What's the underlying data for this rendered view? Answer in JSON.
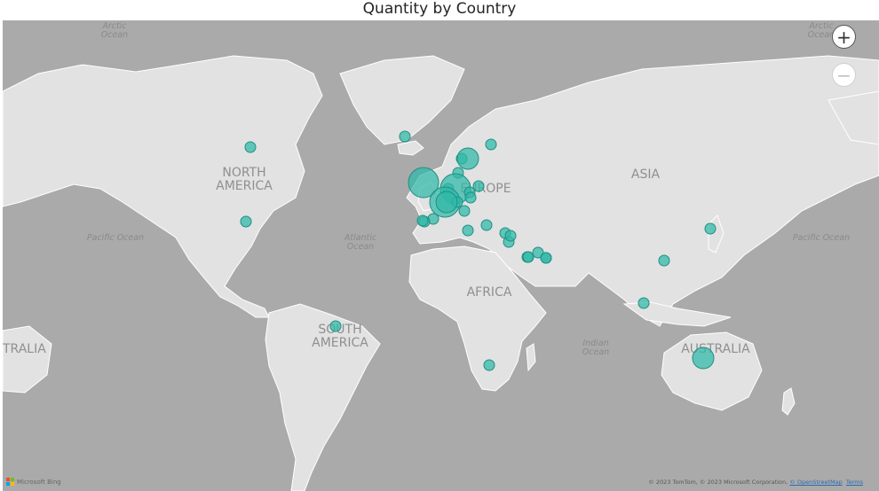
{
  "title": "Quantity by Country",
  "labels": {
    "arctic_left": [
      "Arctic",
      "Ocean"
    ],
    "arctic_right": [
      "Arctic",
      "Ocean"
    ],
    "pacific_left": "Pacific Ocean",
    "pacific_right": "Pacific Ocean",
    "atlantic": [
      "Atlantic",
      "Ocean"
    ],
    "indian": [
      "Indian",
      "Ocean"
    ],
    "north_america": [
      "NORTH",
      "AMERICA"
    ],
    "south_america": [
      "SOUTH",
      "AMERICA"
    ],
    "europe": "EUROPE",
    "africa": "AFRICA",
    "asia": "ASIA",
    "australia_left": "TRALIA",
    "australia": "AUSTRALIA"
  },
  "controls": {
    "zoom_in": "+",
    "zoom_out": "−"
  },
  "footer": {
    "bing": "Microsoft Bing",
    "attribution": "© 2023 TomTom, © 2023 Microsoft Corporation, ",
    "osm_link": "© OpenStreetMap",
    "terms_link": "Terms"
  },
  "colors": {
    "bubble": "#2fb9a8",
    "land": "#e2e2e2",
    "water": "#aaaaaa"
  },
  "bubbles": [
    {
      "place": "Canada",
      "size": "small"
    },
    {
      "place": "United States",
      "size": "small"
    },
    {
      "place": "Iceland",
      "size": "small"
    },
    {
      "place": "Brazil",
      "size": "small"
    },
    {
      "place": "South Africa",
      "size": "small"
    },
    {
      "place": "United Kingdom",
      "size": "large"
    },
    {
      "place": "Ireland",
      "size": "small"
    },
    {
      "place": "Norway",
      "size": "small"
    },
    {
      "place": "Sweden",
      "size": "medium"
    },
    {
      "place": "Finland",
      "size": "small"
    },
    {
      "place": "Denmark",
      "size": "small"
    },
    {
      "place": "Netherlands",
      "size": "small"
    },
    {
      "place": "Belgium",
      "size": "small"
    },
    {
      "place": "Germany",
      "size": "large"
    },
    {
      "place": "France",
      "size": "large"
    },
    {
      "place": "Switzerland",
      "size": "small"
    },
    {
      "place": "Austria",
      "size": "small"
    },
    {
      "place": "Poland",
      "size": "small"
    },
    {
      "place": "Czech Republic",
      "size": "small"
    },
    {
      "place": "Italy",
      "size": "small"
    },
    {
      "place": "Spain",
      "size": "medium"
    },
    {
      "place": "Portugal",
      "size": "small"
    },
    {
      "place": "Greece",
      "size": "small"
    },
    {
      "place": "Malta",
      "size": "small"
    },
    {
      "place": "Turkey",
      "size": "small"
    },
    {
      "place": "Israel",
      "size": "small"
    },
    {
      "place": "Lebanon",
      "size": "small"
    },
    {
      "place": "Jordan",
      "size": "small"
    },
    {
      "place": "Saudi Arabia",
      "size": "small"
    },
    {
      "place": "Qatar",
      "size": "small"
    },
    {
      "place": "United Arab Emirates",
      "size": "small"
    },
    {
      "place": "Oman",
      "size": "small"
    },
    {
      "place": "Japan",
      "size": "small"
    },
    {
      "place": "Hong Kong",
      "size": "small"
    },
    {
      "place": "Singapore",
      "size": "small"
    },
    {
      "place": "Australia",
      "size": "medium"
    }
  ]
}
